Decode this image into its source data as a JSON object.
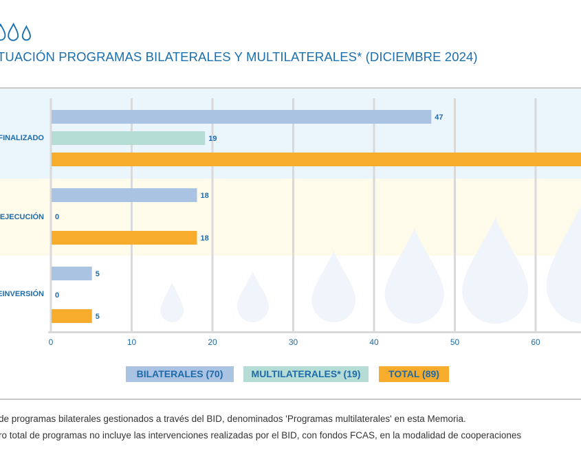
{
  "header": {
    "title": "TUACIÓN PROGRAMAS BILATERALES Y MULTILATERALES* (DICIEMBRE 2024)",
    "icons": [
      "water-drop-icon",
      "water-drop-icon",
      "water-drop-icon"
    ]
  },
  "chart_data": {
    "type": "bar",
    "orientation": "horizontal",
    "title": "TUACIÓN PROGRAMAS BILATERALES Y MULTILATERALES* (DICIEMBRE 2024)",
    "categories": [
      "FINALIZADO",
      "/ EJECUCIÓN",
      "EINVERSIÓN"
    ],
    "series": [
      {
        "name": "BILATERALES (70)",
        "color": "#aac3e2",
        "values": [
          47,
          18,
          5
        ]
      },
      {
        "name": "MULTILATERALES* (19)",
        "color": "#b5ddd5",
        "values": [
          19,
          0,
          0
        ]
      },
      {
        "name": "TOTAL (89)",
        "color": "#f8ac2b",
        "values": [
          66,
          18,
          5
        ]
      }
    ],
    "value_labels": [
      [
        "47",
        "18",
        "5"
      ],
      [
        "19",
        "0",
        "0"
      ],
      [
        "",
        "18",
        "5"
      ]
    ],
    "x_ticks": [
      "0",
      "10",
      "20",
      "30",
      "40",
      "50",
      "60"
    ],
    "xlim": [
      0,
      66
    ],
    "grid": true,
    "band_colors": [
      "#eaf5fc",
      "#fefbea",
      "#ffffff"
    ],
    "label_color": "#1e6aa8",
    "legend": {
      "placement": "bottom",
      "entries": [
        "BILATERALES (70)",
        "MULTILATERALES* (19)",
        "TOTAL (89)"
      ]
    }
  },
  "legend": {
    "bilaterales": "BILATERALES (70)",
    "multilaterales": "MULTILATERALES* (19)",
    "total": "TOTAL (89)"
  },
  "notes": {
    "line1": " de programas bilaterales gestionados a través del BID, denominados 'Programas multilaterales' en esta Memoria.",
    "line2": "ro total de programas no incluye las intervenciones realizadas por el BID, con fondos FCAS, en la modalidad de cooperaciones"
  }
}
